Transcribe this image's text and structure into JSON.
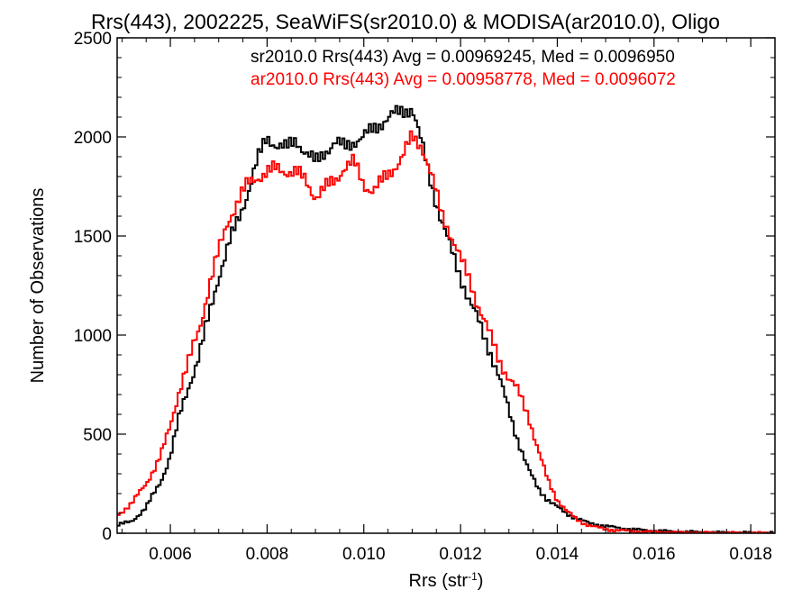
{
  "chart_data": {
    "type": "line",
    "title": "Rrs(443), 2002225, SeaWiFS(sr2010.0) & MODISA(ar2010.0), Oligo",
    "xlabel_prefix": "Rrs (str",
    "xlabel_sup": "-1",
    "xlabel_suffix": ")",
    "ylabel": "Number of Observations",
    "xlim": [
      0.0049,
      0.0185
    ],
    "ylim": [
      0,
      2500
    ],
    "xticks": [
      0.006,
      0.008,
      0.01,
      0.012,
      0.014,
      0.016,
      0.018
    ],
    "xtick_labels": [
      "0.006",
      "0.008",
      "0.010",
      "0.012",
      "0.014",
      "0.016",
      "0.018"
    ],
    "yticks": [
      0,
      500,
      1000,
      1500,
      2000,
      2500
    ],
    "ytick_labels": [
      "0",
      "500",
      "1000",
      "1500",
      "2000",
      "2500"
    ],
    "grid": false,
    "legend_position": "top-right",
    "series": [
      {
        "name": "sr2010.0 Rrs(443) Avg = 0.00969245, Med = 0.0096950",
        "color": "#000000",
        "points": [
          [
            0.0049,
            40
          ],
          [
            0.0052,
            60
          ],
          [
            0.0055,
            130
          ],
          [
            0.0058,
            260
          ],
          [
            0.006,
            390
          ],
          [
            0.0062,
            600
          ],
          [
            0.0064,
            760
          ],
          [
            0.0066,
            900
          ],
          [
            0.0068,
            1100
          ],
          [
            0.007,
            1300
          ],
          [
            0.0072,
            1450
          ],
          [
            0.0074,
            1580
          ],
          [
            0.0076,
            1720
          ],
          [
            0.0078,
            1880
          ],
          [
            0.008,
            2000
          ],
          [
            0.0082,
            1960
          ],
          [
            0.0084,
            1940
          ],
          [
            0.0086,
            1990
          ],
          [
            0.0088,
            1920
          ],
          [
            0.009,
            1870
          ],
          [
            0.0092,
            1930
          ],
          [
            0.0094,
            1970
          ],
          [
            0.0096,
            1950
          ],
          [
            0.0098,
            1980
          ],
          [
            0.01,
            2000
          ],
          [
            0.0102,
            2040
          ],
          [
            0.0104,
            2080
          ],
          [
            0.0106,
            2110
          ],
          [
            0.0108,
            2130
          ],
          [
            0.011,
            2150
          ],
          [
            0.0112,
            1960
          ],
          [
            0.0114,
            1760
          ],
          [
            0.0116,
            1580
          ],
          [
            0.0118,
            1430
          ],
          [
            0.012,
            1300
          ],
          [
            0.0122,
            1160
          ],
          [
            0.0124,
            1050
          ],
          [
            0.0126,
            930
          ],
          [
            0.0128,
            780
          ],
          [
            0.013,
            620
          ],
          [
            0.0132,
            460
          ],
          [
            0.0134,
            320
          ],
          [
            0.0136,
            230
          ],
          [
            0.0138,
            170
          ],
          [
            0.014,
            130
          ],
          [
            0.0142,
            100
          ],
          [
            0.0144,
            75
          ],
          [
            0.0146,
            55
          ],
          [
            0.0148,
            45
          ],
          [
            0.015,
            35
          ],
          [
            0.0155,
            20
          ],
          [
            0.016,
            12
          ],
          [
            0.0165,
            7
          ],
          [
            0.017,
            4
          ],
          [
            0.0175,
            2
          ],
          [
            0.018,
            1
          ],
          [
            0.0185,
            0
          ]
        ]
      },
      {
        "name": "ar2010.0 Rrs(443) Avg = 0.00958778, Med = 0.0096072",
        "color": "#ff0000",
        "points": [
          [
            0.0049,
            90
          ],
          [
            0.0052,
            150
          ],
          [
            0.0055,
            250
          ],
          [
            0.0058,
            390
          ],
          [
            0.006,
            540
          ],
          [
            0.0062,
            740
          ],
          [
            0.0064,
            880
          ],
          [
            0.0066,
            1030
          ],
          [
            0.0068,
            1250
          ],
          [
            0.007,
            1420
          ],
          [
            0.0072,
            1580
          ],
          [
            0.0074,
            1680
          ],
          [
            0.0076,
            1760
          ],
          [
            0.0078,
            1800
          ],
          [
            0.008,
            1820
          ],
          [
            0.0082,
            1840
          ],
          [
            0.0084,
            1830
          ],
          [
            0.0086,
            1820
          ],
          [
            0.0088,
            1780
          ],
          [
            0.009,
            1700
          ],
          [
            0.0092,
            1740
          ],
          [
            0.0094,
            1780
          ],
          [
            0.0096,
            1850
          ],
          [
            0.0098,
            1870
          ],
          [
            0.01,
            1760
          ],
          [
            0.0102,
            1730
          ],
          [
            0.0104,
            1780
          ],
          [
            0.0106,
            1840
          ],
          [
            0.0108,
            1900
          ],
          [
            0.011,
            2000
          ],
          [
            0.0112,
            1960
          ],
          [
            0.0114,
            1800
          ],
          [
            0.0116,
            1620
          ],
          [
            0.0118,
            1510
          ],
          [
            0.012,
            1380
          ],
          [
            0.0122,
            1270
          ],
          [
            0.0124,
            1130
          ],
          [
            0.0126,
            1000
          ],
          [
            0.0128,
            880
          ],
          [
            0.013,
            780
          ],
          [
            0.0132,
            710
          ],
          [
            0.0134,
            600
          ],
          [
            0.0136,
            420
          ],
          [
            0.0138,
            270
          ],
          [
            0.014,
            170
          ],
          [
            0.0142,
            110
          ],
          [
            0.0144,
            70
          ],
          [
            0.0146,
            45
          ],
          [
            0.0148,
            30
          ],
          [
            0.015,
            20
          ],
          [
            0.0155,
            10
          ],
          [
            0.016,
            6
          ],
          [
            0.0165,
            4
          ],
          [
            0.017,
            3
          ],
          [
            0.0175,
            2
          ],
          [
            0.018,
            1
          ],
          [
            0.0185,
            0
          ]
        ]
      }
    ]
  }
}
